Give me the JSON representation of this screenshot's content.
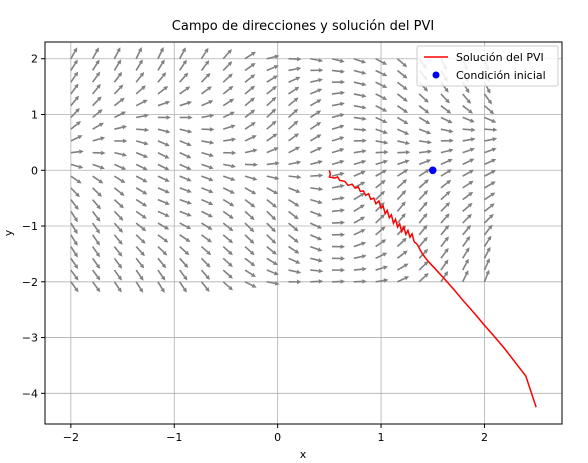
{
  "chart_data": {
    "type": "line",
    "title": "Campo de direcciones y solución del PVI",
    "xlabel": "x",
    "ylabel": "y",
    "xlim": [
      -2.25,
      2.75
    ],
    "ylim": [
      -4.55,
      2.3
    ],
    "xticks": [
      -2,
      -1,
      0,
      1,
      2
    ],
    "yticks": [
      -4,
      -3,
      -2,
      -1,
      0,
      1,
      2
    ],
    "xtick_labels": [
      "−2",
      "−1",
      "0",
      "1",
      "2"
    ],
    "ytick_labels": [
      "−4",
      "−3",
      "−2",
      "−1",
      "0",
      "1",
      "2"
    ],
    "grid": true,
    "legend_position": "top-right",
    "legend": [
      {
        "label": "Solución del PVI",
        "kind": "line",
        "color": "#ff0000"
      },
      {
        "label": "Condición inicial",
        "kind": "marker",
        "color": "#0000ff"
      }
    ],
    "direction_field": {
      "x_range": [
        -2,
        2
      ],
      "y_range": [
        -2,
        2
      ],
      "n": 20,
      "color": "#808080"
    },
    "series": [
      {
        "name": "Solución del PVI",
        "color": "#ff0000",
        "points": [
          [
            0.5,
            0.0
          ],
          [
            0.51,
            -0.08
          ],
          [
            0.5,
            -0.12
          ],
          [
            0.55,
            -0.14
          ],
          [
            0.58,
            -0.12
          ],
          [
            0.6,
            -0.18
          ],
          [
            0.65,
            -0.2
          ],
          [
            0.68,
            -0.27
          ],
          [
            0.72,
            -0.25
          ],
          [
            0.75,
            -0.32
          ],
          [
            0.78,
            -0.3
          ],
          [
            0.8,
            -0.38
          ],
          [
            0.83,
            -0.37
          ],
          [
            0.85,
            -0.45
          ],
          [
            0.88,
            -0.42
          ],
          [
            0.9,
            -0.52
          ],
          [
            0.93,
            -0.5
          ],
          [
            0.95,
            -0.6
          ],
          [
            0.98,
            -0.55
          ],
          [
            1.0,
            -0.68
          ],
          [
            1.02,
            -0.64
          ],
          [
            1.04,
            -0.78
          ],
          [
            1.06,
            -0.72
          ],
          [
            1.08,
            -0.85
          ],
          [
            1.1,
            -0.8
          ],
          [
            1.12,
            -0.95
          ],
          [
            1.14,
            -0.88
          ],
          [
            1.16,
            -1.02
          ],
          [
            1.18,
            -0.96
          ],
          [
            1.2,
            -1.1
          ],
          [
            1.22,
            -1.02
          ],
          [
            1.24,
            -1.15
          ],
          [
            1.26,
            -1.08
          ],
          [
            1.28,
            -1.2
          ],
          [
            1.3,
            -1.14
          ],
          [
            1.32,
            -1.28
          ],
          [
            1.35,
            -1.33
          ],
          [
            1.4,
            -1.5
          ],
          [
            1.45,
            -1.62
          ],
          [
            1.5,
            -1.72
          ],
          [
            1.6,
            -1.92
          ],
          [
            1.7,
            -2.13
          ],
          [
            1.8,
            -2.35
          ],
          [
            1.9,
            -2.56
          ],
          [
            2.0,
            -2.78
          ],
          [
            2.1,
            -2.99
          ],
          [
            2.2,
            -3.21
          ],
          [
            2.3,
            -3.45
          ],
          [
            2.4,
            -3.69
          ],
          [
            2.5,
            -4.25
          ]
        ]
      },
      {
        "name": "Condición inicial",
        "type": "scatter",
        "color": "#0000ff",
        "points": [
          [
            1.5,
            0.0
          ]
        ]
      }
    ]
  }
}
